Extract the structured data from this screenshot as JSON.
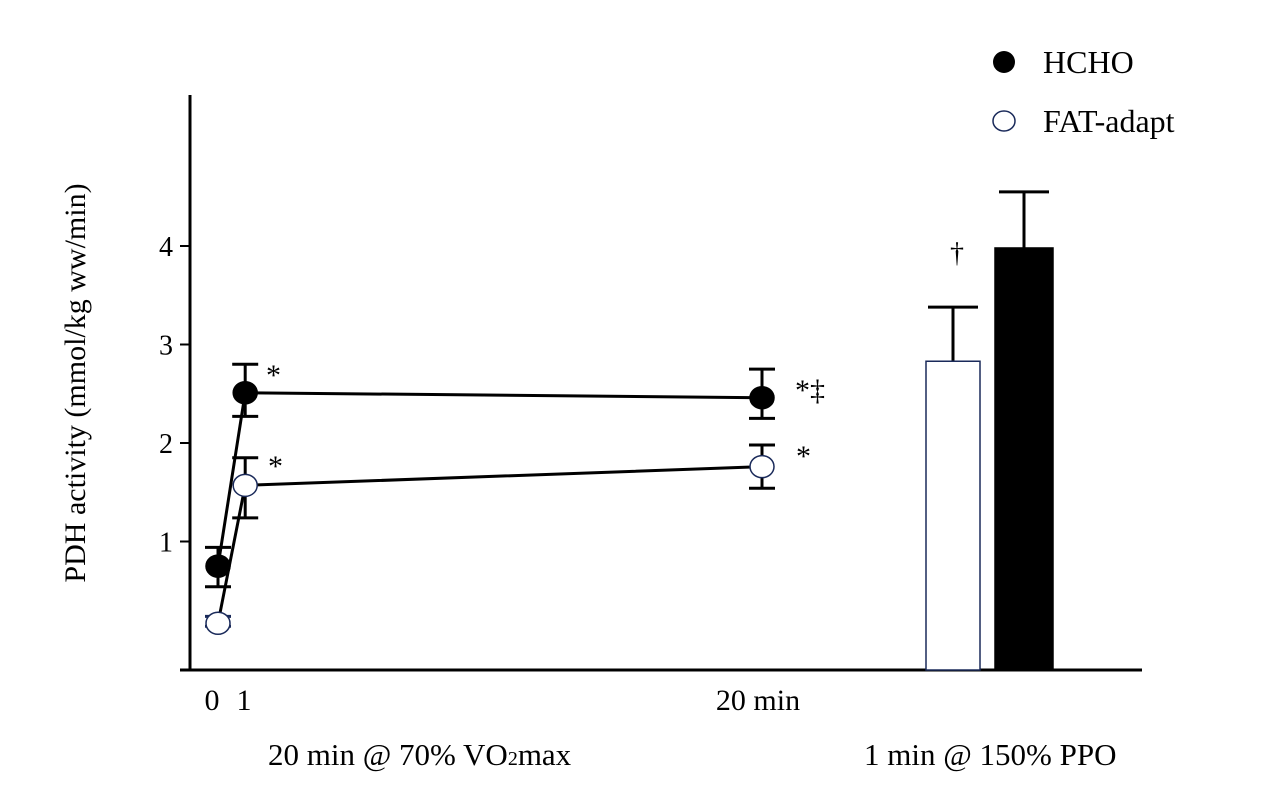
{
  "chart_data": {
    "type": "line+bar",
    "ylabel": "PDH activity (mmol/kg ww/min)",
    "ylim": [
      -0.3,
      5.5
    ],
    "yticks": [
      "1",
      "2",
      "3",
      "4"
    ],
    "ytick_values": [
      1,
      2,
      3,
      4
    ],
    "xtick_labels": [
      "0",
      "1",
      "20 min"
    ],
    "xtick_values": [
      0,
      1,
      20
    ],
    "group_labels": {
      "exercise": "20 min @ 70% VO",
      "exercise_sub": "2",
      "exercise_tail": "max",
      "sprint": "1 min @ 150% PPO"
    },
    "legend": {
      "position": "top-right",
      "entries": [
        "HCHO",
        "FAT-adapt"
      ]
    },
    "series": [
      {
        "name": "HCHO",
        "fill": "#000000",
        "x": [
          0,
          1,
          20
        ],
        "values": [
          0.75,
          2.51,
          2.46
        ],
        "err_low": [
          0.54,
          2.27,
          2.25
        ],
        "err_high": [
          0.94,
          2.8,
          2.75
        ]
      },
      {
        "name": "FAT-adapt",
        "fill": "#ffffff",
        "x": [
          0,
          1,
          20
        ],
        "values": [
          0.17,
          1.57,
          1.76
        ],
        "err_low": [
          0.14,
          1.24,
          1.54
        ],
        "err_high": [
          0.24,
          1.85,
          1.98
        ]
      }
    ],
    "bars": [
      {
        "name": "FAT-adapt",
        "value": 2.83,
        "err_high": 3.38,
        "fill": "#ffffff"
      },
      {
        "name": "HCHO",
        "value": 3.98,
        "err_high": 4.55,
        "fill": "#000000"
      }
    ],
    "annotations": [
      {
        "text": "*",
        "target": "HCHO 1 min"
      },
      {
        "text": "*",
        "target": "FAT-adapt 1 min"
      },
      {
        "text": "*‡",
        "target": "HCHO 20 min"
      },
      {
        "text": "*",
        "target": "FAT-adapt 20 min"
      },
      {
        "text": "†",
        "target": "FAT-adapt bar"
      }
    ]
  }
}
